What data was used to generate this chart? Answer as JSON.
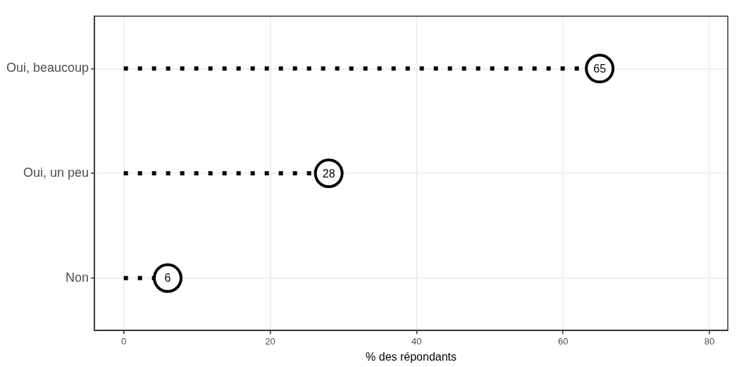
{
  "chart_data": {
    "type": "lollipop",
    "orientation": "horizontal",
    "xlabel": "% des répondants",
    "categories": [
      "Oui, beaucoup",
      "Oui, un peu",
      "Non"
    ],
    "values": [
      65,
      28,
      6
    ],
    "color": "#000000",
    "xlim": [
      -4,
      82.5
    ],
    "xticks": [
      0,
      20,
      40,
      60,
      80
    ],
    "grid": true,
    "data_labels": true,
    "marker": "circle",
    "line_style": "dotted",
    "legend": false
  }
}
